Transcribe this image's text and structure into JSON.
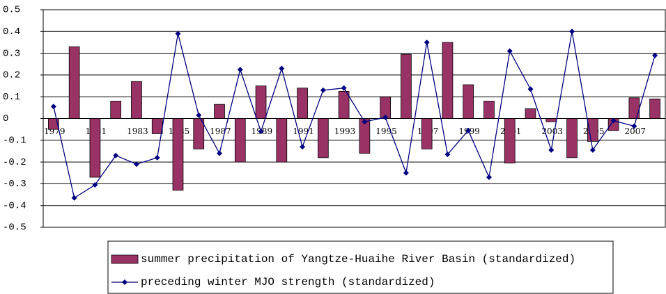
{
  "chart_data": {
    "type": "bar",
    "categories": [
      "1979",
      null,
      "1981",
      null,
      "1983",
      null,
      "1985",
      null,
      "1987",
      null,
      "1989",
      null,
      "1991",
      null,
      "1993",
      null,
      "1995",
      null,
      "1997",
      null,
      "1999",
      null,
      "2001",
      null,
      "2003",
      null,
      "2005",
      null,
      "2007",
      null
    ],
    "series": [
      {
        "name": "summer precipitation of Yangtze-Huaihe River Basin (standardized)",
        "type": "bar",
        "color": "#993366",
        "values": [
          -0.05,
          0.33,
          -0.27,
          0.08,
          0.17,
          -0.07,
          -0.33,
          -0.14,
          0.065,
          -0.2,
          0.15,
          -0.2,
          0.14,
          -0.18,
          0.125,
          -0.16,
          0.1,
          0.295,
          -0.14,
          0.35,
          0.155,
          0.08,
          -0.205,
          0.045,
          -0.015,
          -0.18,
          -0.105,
          -0.055,
          0.095,
          0.09
        ]
      },
      {
        "name": "preceding winter MJO strength (standardized)",
        "type": "line",
        "color": "#000080",
        "values": [
          0.055,
          -0.365,
          -0.305,
          -0.17,
          -0.21,
          -0.18,
          0.39,
          0.015,
          -0.16,
          0.225,
          -0.06,
          0.23,
          -0.13,
          0.13,
          0.14,
          -0.015,
          0.005,
          -0.25,
          0.35,
          -0.165,
          -0.055,
          -0.27,
          0.31,
          0.135,
          -0.145,
          0.4,
          -0.145,
          -0.01,
          -0.035,
          0.29
        ]
      }
    ],
    "ylim": [
      -0.5,
      0.5
    ],
    "yticks": [
      0.5,
      0.4,
      0.3,
      0.2,
      0.1,
      0,
      -0.1,
      -0.2,
      -0.3,
      -0.4,
      -0.5
    ],
    "grid": true
  }
}
